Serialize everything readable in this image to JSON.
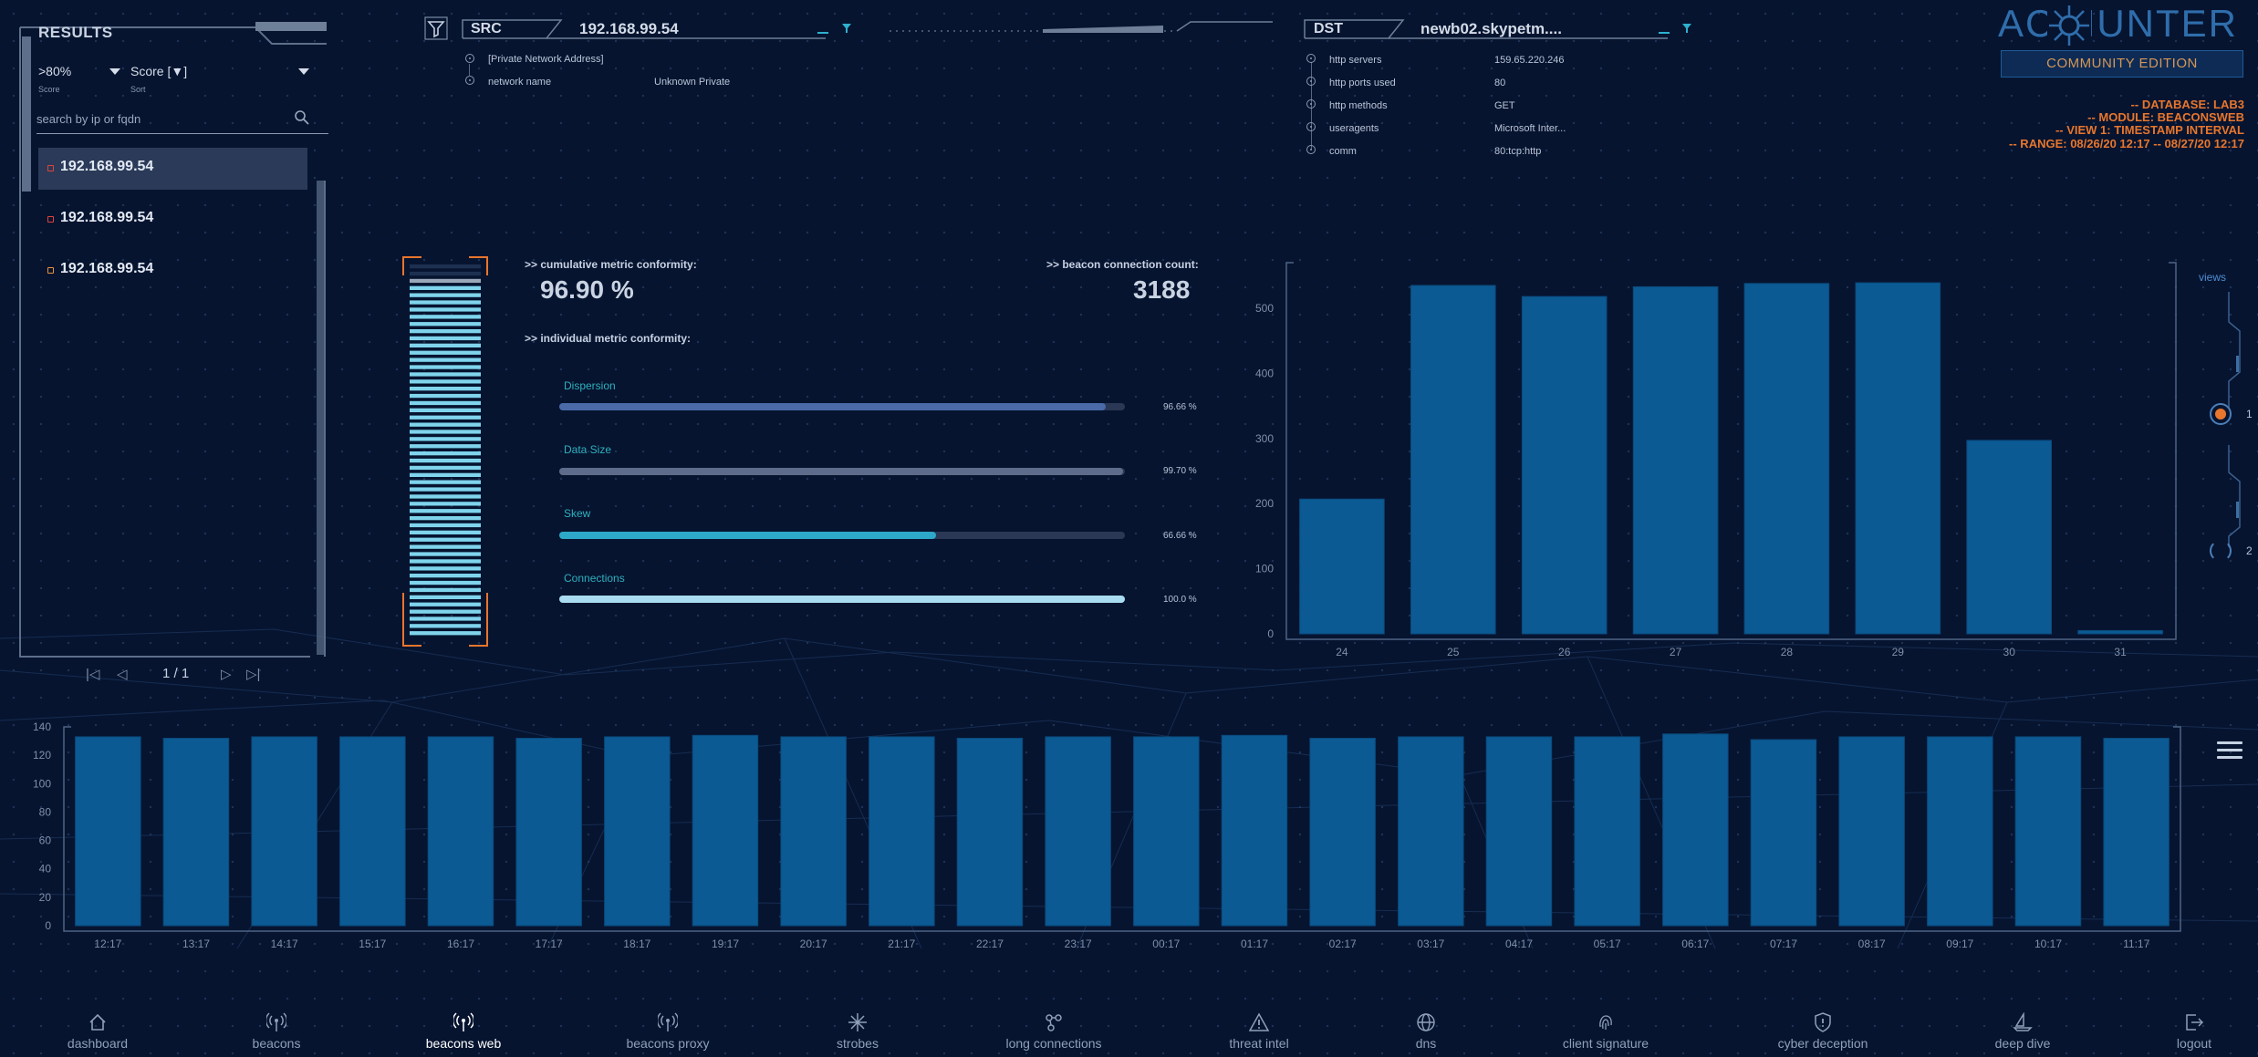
{
  "results": {
    "title": "RESULTS",
    "filter_value": ">80%",
    "filter_caption": "Score",
    "sort_value": "Score [▼]",
    "sort_caption": "Sort",
    "search_placeholder": "search by ip or fqdn",
    "items": [
      {
        "ip": "192.168.99.54",
        "selected": true,
        "dot_color": "#e0433a"
      },
      {
        "ip": "192.168.99.54",
        "selected": false,
        "dot_color": "#e0433a"
      },
      {
        "ip": "192.168.99.54",
        "selected": false,
        "dot_color": "#e8923a"
      }
    ],
    "pager": {
      "first": "|◁",
      "prev": "◁",
      "page": "1 / 1",
      "next": "▷",
      "last": "▷|"
    }
  },
  "src": {
    "label": "SRC",
    "value": "192.168.99.54",
    "fields": [
      {
        "key": "[Private Network Address]",
        "value": ""
      },
      {
        "key": "network name",
        "value": "Unknown Private"
      }
    ]
  },
  "dst": {
    "label": "DST",
    "value": "newb02.skypetm....",
    "fields": [
      {
        "key": "http servers",
        "value": "159.65.220.246"
      },
      {
        "key": "http ports used",
        "value": "80"
      },
      {
        "key": "http methods",
        "value": "GET"
      },
      {
        "key": "useragents",
        "value": "Microsoft Inter..."
      },
      {
        "key": "comm",
        "value": "80:tcp:http"
      }
    ]
  },
  "branding": {
    "logo_text": "AC HUNTER",
    "edition": "COMMUNITY EDITION"
  },
  "db_info": [
    "-- DATABASE: LAB3",
    "-- MODULE: BEACONSWEB",
    "-- VIEW 1: TIMESTAMP INTERVAL",
    "-- RANGE: 08/26/20 12:17 -- 08/27/20 12:17"
  ],
  "conformity": {
    "cumulative_label": ">> cumulative metric conformity:",
    "cumulative_value": "96.90 %",
    "count_label": ">> beacon connection count:",
    "count_value": "3188",
    "individual_label": ">> individual metric conformity:",
    "score_fraction": 0.969,
    "metrics": [
      {
        "name": "Dispersion",
        "pct": "96.66 %",
        "fraction": 0.9666,
        "color": "#4a6aa8"
      },
      {
        "name": "Data Size",
        "pct": "99.70 %",
        "fraction": 0.997,
        "color": "#5d6c8a"
      },
      {
        "name": "Skew",
        "pct": "66.66 %",
        "fraction": 0.6666,
        "color": "#2ea8c8"
      },
      {
        "name": "Connections",
        "pct": "100.0 %",
        "fraction": 1.0,
        "color": "#a9dcf0"
      }
    ]
  },
  "views": {
    "label": "views",
    "items": [
      "1",
      "2"
    ],
    "active": "1"
  },
  "chart_data": [
    {
      "type": "bar",
      "categories": [
        "24",
        "25",
        "26",
        "27",
        "28",
        "29",
        "30",
        "31"
      ],
      "values": [
        207,
        535,
        518,
        533,
        538,
        539,
        297,
        5
      ],
      "ylim": [
        0,
        570
      ],
      "yticks": [
        0,
        100,
        200,
        300,
        400,
        500
      ],
      "bar_color": "#0b5a93",
      "title": "",
      "xlabel": "",
      "ylabel": ""
    },
    {
      "type": "bar",
      "categories": [
        "12:17",
        "13:17",
        "14:17",
        "15:17",
        "16:17",
        "17:17",
        "18:17",
        "19:17",
        "20:17",
        "21:17",
        "22:17",
        "23:17",
        "00:17",
        "01:17",
        "02:17",
        "03:17",
        "04:17",
        "05:17",
        "06:17",
        "07:17",
        "08:17",
        "09:17",
        "10:17",
        "11:17"
      ],
      "values": [
        133,
        132,
        133,
        133,
        133,
        132,
        133,
        134,
        133,
        133,
        132,
        133,
        133,
        134,
        132,
        133,
        133,
        133,
        135,
        131,
        133,
        133,
        133,
        132
      ],
      "ylim": [
        0,
        140
      ],
      "yticks": [
        0,
        20,
        40,
        60,
        80,
        100,
        120,
        140
      ],
      "bar_color": "#0b5a93",
      "title": "",
      "xlabel": "",
      "ylabel": ""
    }
  ],
  "nav": [
    {
      "label": "dashboard",
      "icon": "home-icon",
      "active": false
    },
    {
      "label": "beacons",
      "icon": "broadcast-icon",
      "active": false
    },
    {
      "label": "beacons web",
      "icon": "broadcast-icon",
      "active": true
    },
    {
      "label": "beacons proxy",
      "icon": "broadcast-icon",
      "active": false
    },
    {
      "label": "strobes",
      "icon": "starburst-icon",
      "active": false
    },
    {
      "label": "long connections",
      "icon": "nodes-icon",
      "active": false
    },
    {
      "label": "threat intel",
      "icon": "warning-icon",
      "active": false
    },
    {
      "label": "dns",
      "icon": "globe-icon",
      "active": false
    },
    {
      "label": "client signature",
      "icon": "fingerprint-icon",
      "active": false
    },
    {
      "label": "cyber deception",
      "icon": "shield-icon",
      "active": false
    },
    {
      "label": "deep dive",
      "icon": "boat-icon",
      "active": false
    },
    {
      "label": "logout",
      "icon": "logout-icon",
      "active": false
    }
  ]
}
